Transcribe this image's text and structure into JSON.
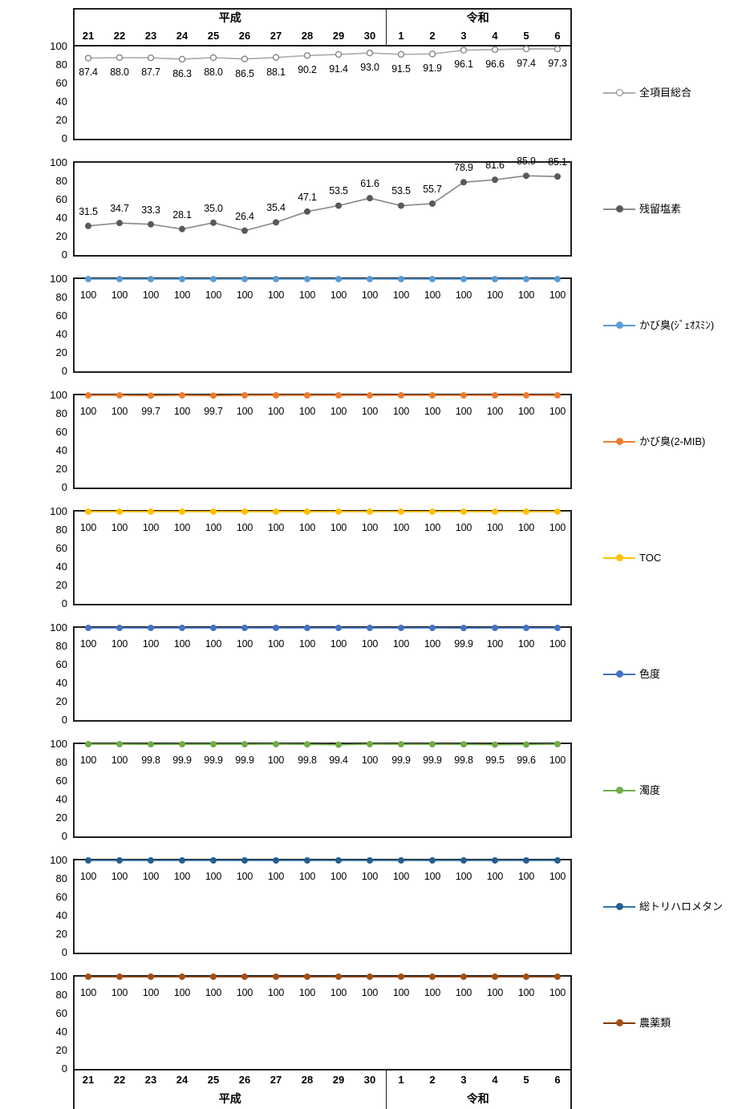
{
  "x_axis": {
    "era_groups": [
      {
        "label": "平成",
        "span": 10
      },
      {
        "label": "令和",
        "span": 6
      }
    ],
    "years": [
      "21",
      "22",
      "23",
      "24",
      "25",
      "26",
      "27",
      "28",
      "29",
      "30",
      "1",
      "2",
      "3",
      "4",
      "5",
      "6"
    ]
  },
  "y_axis": {
    "ticks": [
      "100",
      "80",
      "60",
      "40",
      "20",
      "0"
    ],
    "min": 0,
    "max": 100
  },
  "chart_data": [
    {
      "type": "line",
      "name": "全項目総合",
      "line_color": "#ADADAD",
      "marker_color": "#7F7F7F",
      "marker_fill": "#FFFFFF",
      "marker": "open-circle",
      "label_position": "below-point",
      "values": [
        87.4,
        88.0,
        87.7,
        86.3,
        88.0,
        86.5,
        88.1,
        90.2,
        91.4,
        93.0,
        91.5,
        91.9,
        96.1,
        96.6,
        97.4,
        97.3
      ],
      "labels": [
        "87.4",
        "88.0",
        "87.7",
        "86.3",
        "88.0",
        "86.5",
        "88.1",
        "90.2",
        "91.4",
        "93.0",
        "91.5",
        "91.9",
        "96.1",
        "96.6",
        "97.4",
        "97.3"
      ],
      "ylim": [
        0,
        100
      ]
    },
    {
      "type": "line",
      "name": "残留塩素",
      "line_color": "#8C8C8C",
      "marker_color": "#595959",
      "marker_fill": "#595959",
      "marker": "circle",
      "label_position": "above-point",
      "values": [
        31.5,
        34.7,
        33.3,
        28.1,
        35.0,
        26.4,
        35.4,
        47.1,
        53.5,
        61.6,
        53.5,
        55.7,
        78.9,
        81.6,
        85.9,
        85.1
      ],
      "labels": [
        "31.5",
        "34.7",
        "33.3",
        "28.1",
        "35.0",
        "26.4",
        "35.4",
        "47.1",
        "53.5",
        "61.6",
        "53.5",
        "55.7",
        "78.9",
        "81.6",
        "85.9",
        "85.1"
      ],
      "ylim": [
        0,
        100
      ]
    },
    {
      "type": "line",
      "name": "かび臭(ｼﾞｪｵｽﾐﾝ)",
      "line_color": "#5B9BD5",
      "marker_color": "#5B9BD5",
      "marker_fill": "#5B9BD5",
      "marker": "circle",
      "label_position": "below-line",
      "values": [
        100,
        100,
        100,
        100,
        100,
        100,
        100,
        100,
        100,
        100,
        100,
        100,
        100,
        100,
        100,
        100
      ],
      "labels": [
        "100",
        "100",
        "100",
        "100",
        "100",
        "100",
        "100",
        "100",
        "100",
        "100",
        "100",
        "100",
        "100",
        "100",
        "100",
        "100"
      ],
      "ylim": [
        0,
        100
      ]
    },
    {
      "type": "line",
      "name": "かび臭(2-MIB)",
      "line_color": "#ED7D31",
      "marker_color": "#ED7D31",
      "marker_fill": "#ED7D31",
      "marker": "circle",
      "label_position": "below-line",
      "values": [
        100,
        100,
        99.7,
        100,
        99.7,
        100,
        100,
        100,
        100,
        100,
        100,
        100,
        100,
        100,
        100,
        100
      ],
      "labels": [
        "100",
        "100",
        "99.7",
        "100",
        "99.7",
        "100",
        "100",
        "100",
        "100",
        "100",
        "100",
        "100",
        "100",
        "100",
        "100",
        "100"
      ],
      "ylim": [
        0,
        100
      ]
    },
    {
      "type": "line",
      "name": "TOC",
      "line_color": "#FFC000",
      "marker_color": "#FFC000",
      "marker_fill": "#FFC000",
      "marker": "circle",
      "label_position": "below-line",
      "values": [
        100,
        100,
        100,
        100,
        100,
        100,
        100,
        100,
        100,
        100,
        100,
        100,
        100,
        100,
        100,
        100
      ],
      "labels": [
        "100",
        "100",
        "100",
        "100",
        "100",
        "100",
        "100",
        "100",
        "100",
        "100",
        "100",
        "100",
        "100",
        "100",
        "100",
        "100"
      ],
      "ylim": [
        0,
        100
      ]
    },
    {
      "type": "line",
      "name": "色度",
      "line_color": "#4472C4",
      "marker_color": "#4472C4",
      "marker_fill": "#4472C4",
      "marker": "circle",
      "label_position": "below-line",
      "values": [
        100,
        100,
        100,
        100,
        100,
        100,
        100,
        100,
        100,
        100,
        100,
        100,
        99.9,
        100,
        100,
        100
      ],
      "labels": [
        "100",
        "100",
        "100",
        "100",
        "100",
        "100",
        "100",
        "100",
        "100",
        "100",
        "100",
        "100",
        "99.9",
        "100",
        "100",
        "100"
      ],
      "ylim": [
        0,
        100
      ]
    },
    {
      "type": "line",
      "name": "濁度",
      "line_color": "#70AD47",
      "marker_color": "#70AD47",
      "marker_fill": "#70AD47",
      "marker": "circle",
      "label_position": "below-line",
      "values": [
        100,
        100,
        99.8,
        99.9,
        99.9,
        99.9,
        100,
        99.8,
        99.4,
        100,
        99.9,
        99.9,
        99.8,
        99.5,
        99.6,
        100
      ],
      "labels": [
        "100",
        "100",
        "99.8",
        "99.9",
        "99.9",
        "99.9",
        "100",
        "99.8",
        "99.4",
        "100",
        "99.9",
        "99.9",
        "99.8",
        "99.5",
        "99.6",
        "100"
      ],
      "ylim": [
        0,
        100
      ]
    },
    {
      "type": "line",
      "name": "総トリハロメタン",
      "line_color": "#3474AE",
      "marker_color": "#255E91",
      "marker_fill": "#255E91",
      "marker": "circle",
      "label_position": "below-line",
      "values": [
        100,
        100,
        100,
        100,
        100,
        100,
        100,
        100,
        100,
        100,
        100,
        100,
        100,
        100,
        100,
        100
      ],
      "labels": [
        "100",
        "100",
        "100",
        "100",
        "100",
        "100",
        "100",
        "100",
        "100",
        "100",
        "100",
        "100",
        "100",
        "100",
        "100",
        "100"
      ],
      "ylim": [
        0,
        100
      ]
    },
    {
      "type": "line",
      "name": "農薬類",
      "line_color": "#843C0C",
      "marker_color": "#A24F14",
      "marker_fill": "#A24F14",
      "marker": "circle",
      "label_position": "below-line",
      "values": [
        100,
        100,
        100,
        100,
        100,
        100,
        100,
        100,
        100,
        100,
        100,
        100,
        100,
        100,
        100,
        100
      ],
      "labels": [
        "100",
        "100",
        "100",
        "100",
        "100",
        "100",
        "100",
        "100",
        "100",
        "100",
        "100",
        "100",
        "100",
        "100",
        "100",
        "100"
      ],
      "ylim": [
        0,
        100
      ]
    }
  ]
}
